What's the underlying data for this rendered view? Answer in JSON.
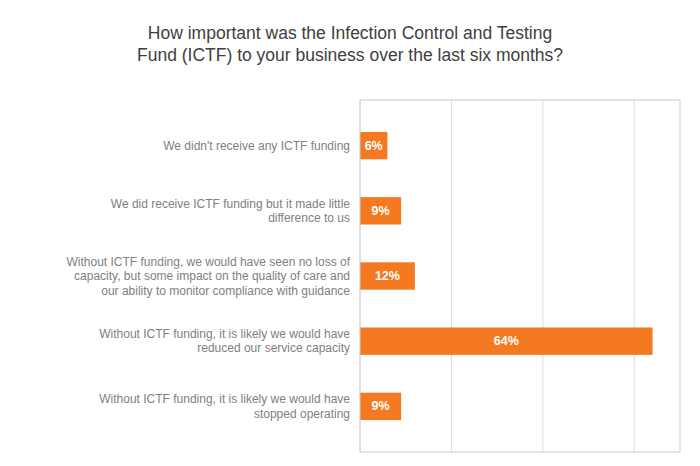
{
  "chart_data": {
    "type": "bar",
    "orientation": "horizontal",
    "title": "How important was the Infection Control and Testing\nFund (ICTF) to your business over the last six months?",
    "categories": [
      "We didn't receive any ICTF funding",
      "We did receive ICTF funding but it made little\ndifference to us",
      "Without ICTF funding, we would have seen no loss of\ncapacity, but some impact on the quality of care and\nour ability to monitor compliance with guidance",
      "Without ICTF funding, it is likely we would have\nreduced our service capacity",
      "Without ICTF funding, it is likely we would have\nstopped operating"
    ],
    "values": [
      6,
      9,
      12,
      64,
      9
    ],
    "value_labels": [
      "6%",
      "9%",
      "12%",
      "64%",
      "9%"
    ],
    "data_labels": true,
    "color": "#F47920",
    "xlim": [
      0,
      70
    ],
    "xticks": [
      0,
      20,
      40,
      60
    ],
    "grid": true,
    "tick_labels": false
  }
}
